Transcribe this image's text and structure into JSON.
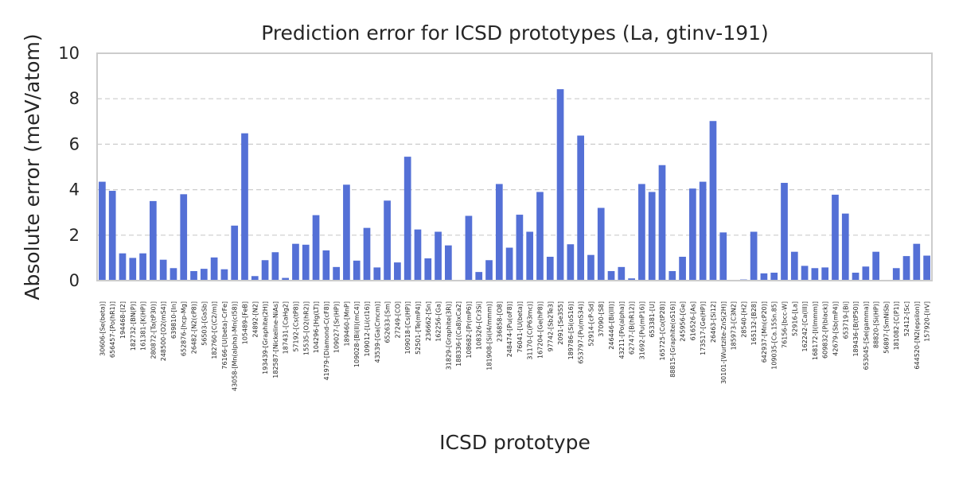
{
  "chart_data": {
    "type": "bar",
    "title": "Prediction error for ICSD prototypes (La, gtinv-191)",
    "xlabel": "ICSD prototype",
    "ylabel": "Absolute error (meV/atom)",
    "ylim": [
      0,
      10
    ],
    "yticks": [
      "0",
      "2",
      "4",
      "6",
      "8",
      "10"
    ],
    "grid": "y-dashed",
    "bar_color": "#5470d6",
    "categories": [
      "30606-[Se(beta)]",
      "656457-[Po(hR1)]",
      "194468-[I2]",
      "182732-[BN(P)]",
      "161381-[K(HP)]",
      "280872-[Ta(tP30)]",
      "248500-[O2(mS4)]",
      "639810-[In]",
      "652876-[hcp-Mg]",
      "26482-[N2(cP8)]",
      "56503-[GaSb]",
      "182760-[C(C2/m)]",
      "76166-[U(beta)-CrFe]",
      "43058-[Mn(alpha)-Mn(cI58)]",
      "105489-[FeB]",
      "24892-[N2]",
      "193439-[Graphite(2H)]",
      "182587-[Nickeline-NiAs]",
      "187431-[CaHg2]",
      "57192-[Cs(tP8)]",
      "15535-[O2(hR2)]",
      "104296-[Hg(LT)]",
      "41979-[Diamond-C(cF8)]",
      "109027-[Sr(HP)]",
      "189460-[MnP]",
      "109028-[Bi(II)(mC4)]",
      "109012-[Li(cI16)]",
      "43539-[Ga(Cmcm)]",
      "652633-[Sm]",
      "27249-[CO]",
      "109018-[Cs(HP)]",
      "52501-[Te(mP4)]",
      "236662-[Sn]",
      "162256-[Ga]",
      "31829-[Graphite(3R)]",
      "188336-[(Ca8)xCa2]",
      "108682-[Pr(mP6)]",
      "108326-[Cr3Si]",
      "181908-[Si(I4/mmm)]",
      "236858-[O8]",
      "248474-[Pu(oF8)]",
      "76041-[U(beta)]",
      "31170-[C(P63mc)]",
      "167204-[Ge(hP8)]",
      "97742-[Sb2Te3]",
      "2091-[Se3S5]",
      "189786-[Si(oS16)]",
      "653797-[Pu(mS34)]",
      "52914-[cP-Sd]",
      "37090-[S8]",
      "246446-[Bi(III)]",
      "43211-[Po(alpha)]",
      "62747-[B(hR12)]",
      "31692-[Pu(mP16)]",
      "653381-[U]",
      "165725-[Co(tP28)]",
      "88815-[Graphite(oS16)]",
      "245956-[Ge]",
      "616526-[As]",
      "173517-[Ge(HP)]",
      "26463-[Si12]",
      "30101-[Wurtzite-ZnS(2H)]",
      "185973-[C3N2]",
      "28540-[H2]",
      "165132-[B28]",
      "642937-[Mn(cP20)]",
      "109035-[Ca.15Sn.85]",
      "76156-[bcc-W]",
      "52916-[La]",
      "162242-[Ca(III)]",
      "168172-[I(Immm)]",
      "609832-[P(black)]",
      "42679-[Sb(mP4)]",
      "653719-[Bi]",
      "189436-[B(tP50)]",
      "653045-[Se(gamma)]",
      "88820-[Si(HP)]",
      "56897-[SmNiSb]",
      "181082-[C(P1)]",
      "52412-[Sc]",
      "644520-[N2(epsilon)]",
      "157920-[IrV]"
    ],
    "values": [
      4.35,
      3.95,
      1.2,
      1.0,
      1.2,
      3.5,
      0.92,
      0.55,
      3.8,
      0.42,
      0.52,
      1.02,
      0.5,
      2.42,
      6.48,
      0.2,
      0.9,
      1.25,
      0.12,
      1.62,
      1.58,
      2.88,
      1.33,
      0.6,
      4.22,
      0.88,
      2.32,
      0.58,
      3.52,
      0.8,
      5.45,
      2.25,
      0.98,
      2.15,
      1.55,
      0.0,
      2.85,
      0.38,
      0.9,
      4.25,
      1.45,
      2.9,
      2.15,
      3.9,
      1.05,
      8.42,
      1.6,
      6.38,
      1.13,
      3.2,
      0.42,
      0.6,
      0.1,
      4.25,
      3.9,
      5.08,
      0.42,
      1.05,
      4.05,
      4.35,
      7.02,
      2.12,
      0.0,
      0.05,
      2.15,
      0.32,
      0.35,
      4.3,
      1.27,
      0.65,
      0.55,
      0.58,
      3.78,
      2.95,
      0.35,
      0.62,
      1.27,
      0.0,
      0.55,
      1.08,
      1.62,
      1.1
    ]
  }
}
